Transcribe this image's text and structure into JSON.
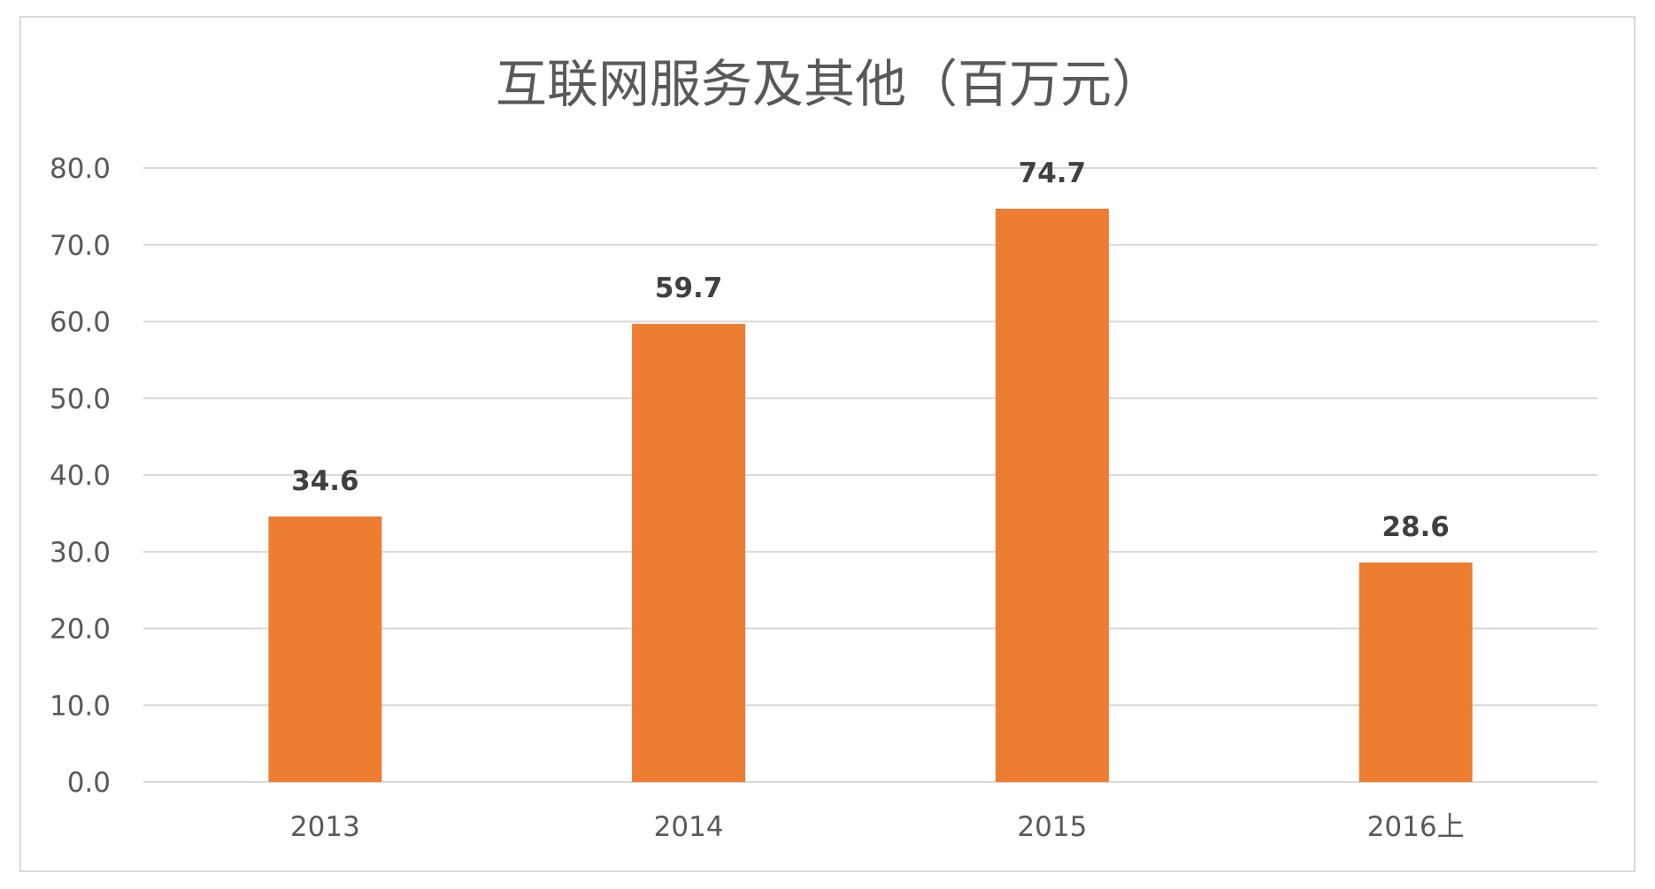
{
  "chart_data": {
    "type": "bar",
    "title": "互联网服务及其他（百万元）",
    "categories": [
      "2013",
      "2014",
      "2015",
      "2016上"
    ],
    "values": [
      34.6,
      59.7,
      74.7,
      28.6
    ],
    "value_labels": [
      "34.6",
      "59.7",
      "74.7",
      "28.6"
    ],
    "ylim": [
      0,
      80
    ],
    "y_ticks": [
      0,
      10,
      20,
      30,
      40,
      50,
      60,
      70,
      80
    ],
    "y_tick_labels": [
      "0.0",
      "10.0",
      "20.0",
      "30.0",
      "40.0",
      "50.0",
      "60.0",
      "70.0",
      "80.0"
    ],
    "grid": true,
    "legend": "none",
    "bar_color": "#ED7D31",
    "grid_color": "#D9D9D9",
    "text_color": "#595959",
    "data_label_color": "#404040"
  }
}
